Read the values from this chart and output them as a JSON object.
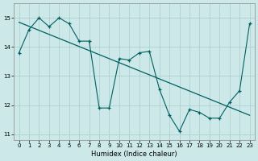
{
  "xlabel": "Humidex (Indice chaleur)",
  "bg_color": "#cce8e8",
  "line_color": "#006060",
  "grid_color": "#aacccc",
  "xlim": [
    -0.5,
    23.5
  ],
  "ylim": [
    10.8,
    15.5
  ],
  "xticks": [
    0,
    1,
    2,
    3,
    4,
    5,
    6,
    7,
    8,
    9,
    10,
    11,
    12,
    13,
    14,
    15,
    16,
    17,
    18,
    19,
    20,
    21,
    22,
    23
  ],
  "yticks": [
    11,
    12,
    13,
    14,
    15
  ],
  "jagged_x": [
    0,
    1,
    2,
    3,
    4,
    5,
    6,
    7,
    8,
    9,
    10,
    11,
    12,
    13,
    14,
    15,
    16,
    17,
    18,
    19,
    20,
    21,
    22,
    23
  ],
  "jagged_y": [
    13.8,
    14.6,
    15.0,
    14.7,
    15.0,
    14.8,
    14.2,
    14.2,
    11.9,
    11.9,
    13.6,
    13.55,
    13.8,
    13.85,
    12.55,
    11.65,
    11.1,
    11.85,
    11.75,
    11.55,
    11.55,
    12.1,
    12.5,
    14.8
  ],
  "trend_x": [
    0,
    23
  ],
  "trend_y": [
    14.85,
    11.65
  ],
  "xlabel_fontsize": 6,
  "tick_fontsize": 5
}
